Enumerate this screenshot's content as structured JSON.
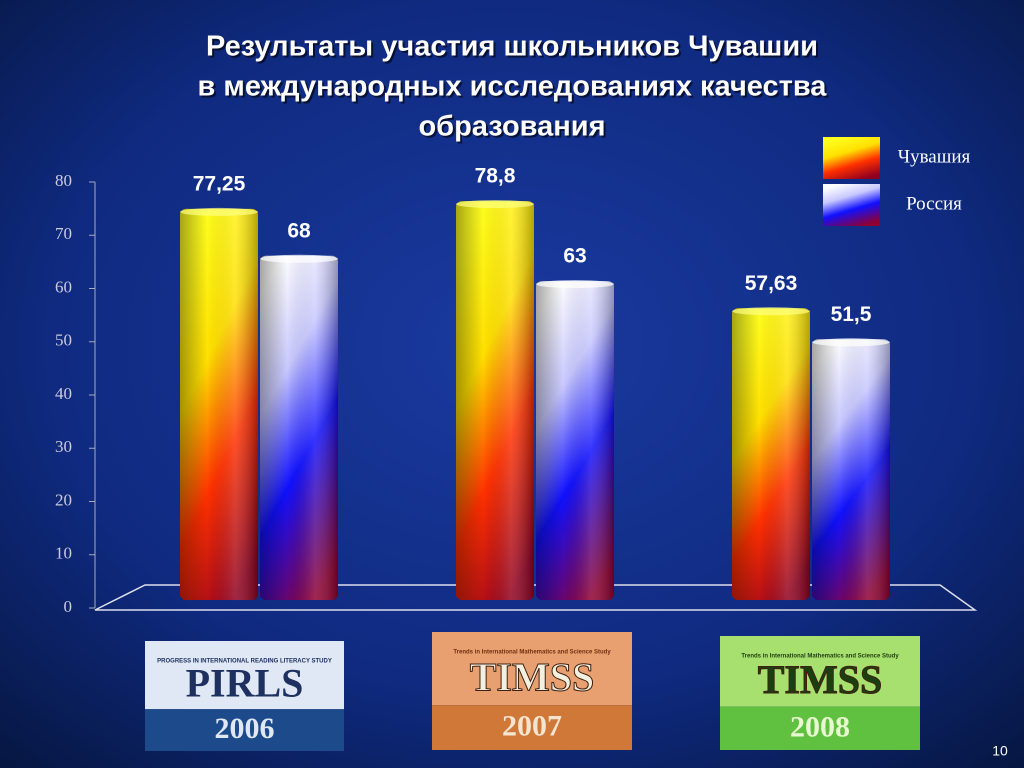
{
  "chart_data": {
    "type": "bar",
    "title": [
      "Результаты  участия школьников Чувашии",
      "в международных исследованиях качества",
      "образования"
    ],
    "categories": [
      "PIRLS",
      "TIMSS",
      "TIMSS"
    ],
    "category_years": [
      "2006",
      "2007",
      "2008"
    ],
    "category_subtitles": [
      "PROGRESS IN INTERNATIONAL READING LITERACY STUDY",
      "Trends in International Mathematics and Science Study",
      "Trends in International Mathematics and Science Study"
    ],
    "series": [
      {
        "name": "Чувашия",
        "color": "#ffff00",
        "values": [
          77.25,
          78.8,
          57.63
        ],
        "value_labels": [
          "77,25",
          "78,8",
          "57,63"
        ]
      },
      {
        "name": "Россия",
        "color": "#2020ff",
        "values": [
          68,
          63,
          51.5
        ],
        "value_labels": [
          "68",
          "63",
          "51,5"
        ]
      }
    ],
    "ylim": [
      0,
      80
    ],
    "yticks": [
      0,
      10,
      20,
      30,
      40,
      50,
      60,
      70,
      80
    ],
    "legend": "top-right"
  },
  "page_number": "10"
}
